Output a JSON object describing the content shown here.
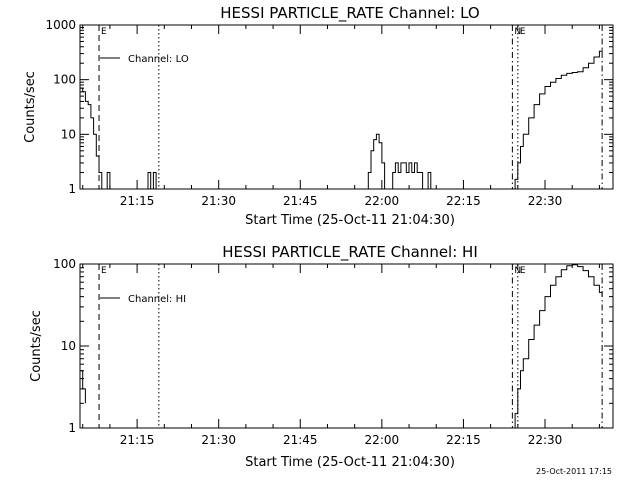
{
  "chart_data": [
    {
      "type": "line",
      "title": "HESSI PARTICLE_RATE Channel: LO",
      "xlabel": "Start Time (25-Oct-11 21:04:30)",
      "ylabel": "Counts/sec",
      "yscale": "log",
      "ylim": [
        1,
        1000
      ],
      "xlim": [
        "21:04:30",
        "22:42:30"
      ],
      "x_ticks": [
        "21:15",
        "21:30",
        "21:45",
        "22:00",
        "22:15",
        "22:30"
      ],
      "y_ticks": [
        "1",
        "10",
        "100",
        "1000"
      ],
      "grid": false,
      "legend": {
        "position": "top-left",
        "entries": [
          "Channel: LO"
        ]
      },
      "vertical_markers": [
        {
          "time": "21:08:00",
          "style": "dashed",
          "label": "E"
        },
        {
          "time": "21:19:00",
          "style": "dotted",
          "label": ""
        },
        {
          "time": "22:24:00",
          "style": "dash-dot",
          "label": "N"
        },
        {
          "time": "22:25:00",
          "style": "dotted",
          "label": "E"
        },
        {
          "time": "22:40:30",
          "style": "dash-dot",
          "label": ""
        }
      ],
      "series": [
        {
          "name": "Channel: LO",
          "x": [
            "21:04:30",
            "21:05:00",
            "21:05:30",
            "21:06:00",
            "21:06:30",
            "21:07:00",
            "21:07:30",
            "21:08:00",
            "21:08:30",
            "21:09:00",
            "21:09:30",
            "21:10:00",
            "21:10:30",
            "21:11:00",
            "21:11:30",
            "21:12:00",
            "21:13:00",
            "21:14:00",
            "21:15:00",
            "21:16:00",
            "21:16:30",
            "21:17:00",
            "21:17:30",
            "21:18:00",
            "21:18:30",
            "21:19:00",
            "21:57:00",
            "21:57:30",
            "21:58:00",
            "21:58:30",
            "21:59:00",
            "21:59:30",
            "22:00:00",
            "22:00:30",
            "22:01:00",
            "22:01:30",
            "22:02:00",
            "22:02:30",
            "22:03:00",
            "22:03:30",
            "22:04:00",
            "22:04:30",
            "22:05:00",
            "22:05:30",
            "22:06:00",
            "22:06:30",
            "22:07:00",
            "22:07:30",
            "22:08:00",
            "22:08:30",
            "22:09:00",
            "22:09:30",
            "22:10:00",
            "22:24:00",
            "22:24:30",
            "22:25:00",
            "22:25:30",
            "22:26:00",
            "22:27:00",
            "22:28:00",
            "22:29:00",
            "22:30:00",
            "22:31:00",
            "22:32:00",
            "22:33:00",
            "22:34:00",
            "22:35:00",
            "22:36:00",
            "22:37:00",
            "22:38:00",
            "22:39:00",
            "22:40:00",
            "22:40:30"
          ],
          "y": [
            70,
            60,
            40,
            35,
            20,
            10,
            4,
            2,
            1,
            1,
            2,
            1,
            1,
            1,
            1,
            1,
            1,
            1,
            1,
            1,
            1,
            2,
            1,
            2,
            1,
            1,
            1,
            2,
            5,
            8,
            10,
            7,
            3,
            1,
            1,
            1,
            2,
            3,
            2,
            3,
            3,
            2,
            3,
            2,
            3,
            2,
            2,
            1,
            1,
            2,
            1,
            1,
            1,
            1,
            1.5,
            3,
            6,
            10,
            20,
            35,
            55,
            75,
            90,
            105,
            120,
            130,
            135,
            140,
            165,
            200,
            260,
            330,
            360
          ]
        }
      ]
    },
    {
      "type": "line",
      "title": "HESSI PARTICLE_RATE Channel: HI",
      "xlabel": "Start Time (25-Oct-11 21:04:30)",
      "ylabel": "Counts/sec",
      "yscale": "log",
      "ylim": [
        1,
        100
      ],
      "xlim": [
        "21:04:30",
        "22:42:30"
      ],
      "x_ticks": [
        "21:15",
        "21:30",
        "21:45",
        "22:00",
        "22:15",
        "22:30"
      ],
      "y_ticks": [
        "1",
        "10",
        "100"
      ],
      "grid": false,
      "legend": {
        "position": "top-left",
        "entries": [
          "Channel: HI"
        ]
      },
      "vertical_markers": [
        {
          "time": "21:08:00",
          "style": "dashed",
          "label": "E"
        },
        {
          "time": "21:19:00",
          "style": "dotted",
          "label": ""
        },
        {
          "time": "22:24:00",
          "style": "dash-dot",
          "label": "N"
        },
        {
          "time": "22:25:00",
          "style": "dotted",
          "label": "E"
        },
        {
          "time": "22:40:30",
          "style": "dash-dot",
          "label": ""
        }
      ],
      "series": [
        {
          "name": "Channel: HI",
          "x": [
            "21:04:30",
            "21:05:00",
            "21:05:30",
            "22:24:00",
            "22:24:30",
            "22:25:00",
            "22:25:30",
            "22:26:00",
            "22:27:00",
            "22:28:00",
            "22:29:00",
            "22:30:00",
            "22:31:00",
            "22:32:00",
            "22:33:00",
            "22:34:00",
            "22:35:00",
            "22:36:00",
            "22:37:00",
            "22:38:00",
            "22:39:00",
            "22:40:00",
            "22:40:30"
          ],
          "y": [
            5,
            3,
            2,
            1,
            1.5,
            3,
            5,
            7,
            12,
            18,
            27,
            40,
            55,
            70,
            85,
            95,
            98,
            93,
            83,
            70,
            55,
            45,
            40
          ]
        }
      ]
    }
  ],
  "footer": {
    "timestamp": "25-Oct-2011 17:15"
  }
}
